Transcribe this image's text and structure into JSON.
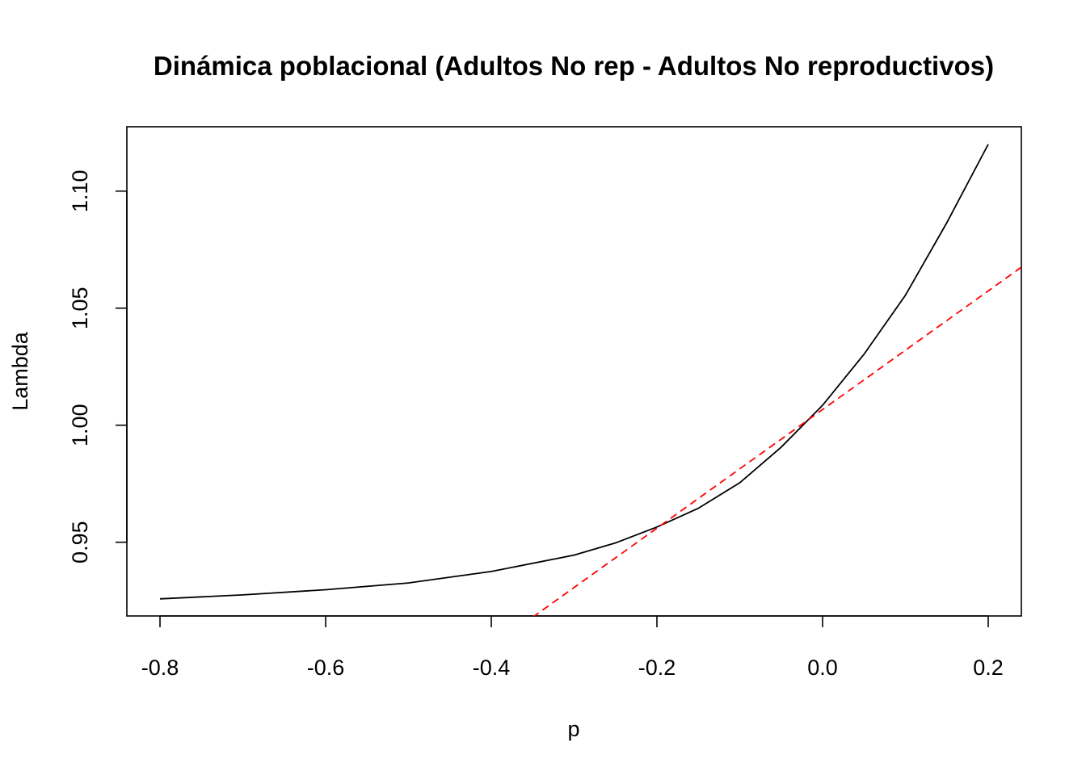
{
  "chart_data": {
    "type": "line",
    "title": "Dinámica poblacional (Adultos No rep - Adultos  No reproductivos)",
    "xlabel": "p",
    "ylabel": "Lambda",
    "xlim": [
      -0.84,
      0.24
    ],
    "ylim": [
      0.9185,
      1.1275
    ],
    "x_ticks": [
      {
        "value": -0.8,
        "label": "-0.8"
      },
      {
        "value": -0.6,
        "label": "-0.6"
      },
      {
        "value": -0.4,
        "label": "-0.4"
      },
      {
        "value": -0.2,
        "label": "-0.2"
      },
      {
        "value": 0.0,
        "label": "0.0"
      },
      {
        "value": 0.2,
        "label": "0.2"
      }
    ],
    "y_ticks": [
      {
        "value": 0.95,
        "label": "0.95"
      },
      {
        "value": 1.0,
        "label": "1.00"
      },
      {
        "value": 1.05,
        "label": "1.05"
      },
      {
        "value": 1.1,
        "label": "1.10"
      }
    ],
    "grid": false,
    "series": [
      {
        "style": "solid",
        "color": "#000000",
        "x": [
          -0.8,
          -0.7,
          -0.6,
          -0.5,
          -0.4,
          -0.3,
          -0.25,
          -0.2,
          -0.15,
          -0.1,
          -0.05,
          0.0,
          0.05,
          0.1,
          0.15,
          0.2
        ],
        "y": [
          0.9258,
          0.9275,
          0.9297,
          0.9326,
          0.9375,
          0.9445,
          0.9497,
          0.9565,
          0.9645,
          0.9754,
          0.9906,
          1.0085,
          1.0303,
          1.0555,
          1.0865,
          1.12
        ]
      },
      {
        "style": "dashed",
        "color": "#ff0000",
        "x": [
          -0.35,
          0.24
        ],
        "y": [
          0.918,
          1.0675
        ]
      }
    ]
  }
}
